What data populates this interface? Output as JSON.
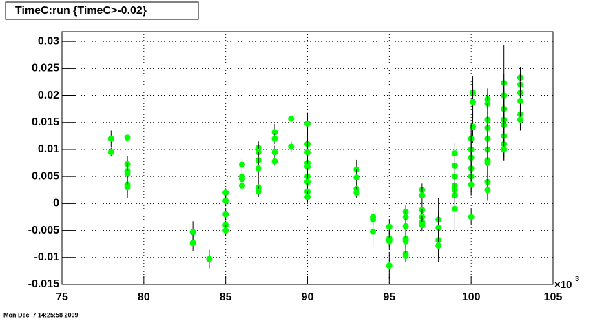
{
  "chart_data": {
    "type": "scatter",
    "title": "TimeC:run {TimeC>-0.02}",
    "x": [
      78,
      78,
      79,
      79,
      79,
      79,
      79,
      79,
      83,
      83,
      84,
      85,
      85,
      85,
      85,
      85,
      86,
      86,
      86,
      86,
      87,
      87,
      87,
      87,
      87,
      87,
      88,
      88,
      88,
      88,
      89,
      89,
      90,
      90,
      90,
      90,
      90,
      90,
      90,
      90,
      90,
      93,
      93,
      93,
      93,
      94,
      94,
      94,
      95,
      95,
      95,
      95,
      96,
      96,
      96,
      96,
      96,
      96,
      96,
      97,
      97,
      97,
      97,
      97,
      97,
      98,
      98,
      98,
      98,
      99,
      99,
      99,
      99,
      99,
      99,
      99,
      100.1,
      100.1,
      100.1,
      100,
      100,
      100,
      100,
      100,
      100,
      100,
      101,
      101,
      101,
      101,
      101,
      101,
      101,
      101,
      101,
      101,
      102,
      102,
      102,
      102,
      102,
      102,
      102,
      102,
      103,
      103,
      103,
      103,
      103,
      103
    ],
    "values": [
      0.012,
      0.0095,
      0.0122,
      0.0073,
      0.006,
      0.0055,
      0.0035,
      0.003,
      -0.0053,
      -0.0073,
      -0.0103,
      0.002,
      0.0005,
      -0.002,
      -0.004,
      -0.005,
      0.0072,
      0.005,
      0.0045,
      0.0033,
      0.0103,
      0.0095,
      0.008,
      0.0065,
      0.003,
      0.0022,
      0.0132,
      0.012,
      0.0095,
      0.0078,
      0.0157,
      0.0105,
      0.0148,
      0.011,
      0.0095,
      0.0075,
      0.0068,
      0.005,
      0.004,
      0.0022,
      0.0012,
      0.0063,
      0.0048,
      0.0027,
      0.002,
      -0.0025,
      -0.003,
      -0.0052,
      -0.0043,
      -0.0065,
      -0.007,
      -0.0115,
      -0.0015,
      -0.0025,
      -0.0042,
      -0.0065,
      -0.007,
      -0.0093,
      -0.0097,
      0.0025,
      0.0015,
      -0.0012,
      -0.0025,
      -0.0035,
      -0.004,
      -0.003,
      -0.0045,
      -0.0068,
      -0.0078,
      0.0093,
      0.007,
      0.005,
      0.0033,
      0.0025,
      0.0015,
      -0.001,
      0.0205,
      0.0188,
      0.0142,
      0.012,
      0.01,
      0.0085,
      0.0065,
      0.005,
      0.0035,
      -0.0025,
      0.0193,
      0.0185,
      0.0155,
      0.014,
      0.012,
      0.01,
      0.008,
      0.0075,
      0.004,
      0.0025,
      0.0223,
      0.02,
      0.0175,
      0.0155,
      0.0145,
      0.0125,
      0.011,
      0.01,
      0.0233,
      0.022,
      0.0205,
      0.019,
      0.0165,
      0.0155
    ],
    "errors": [
      0.0015,
      0.0008,
      0.0005,
      0.0015,
      0.0015,
      0.001,
      0.0015,
      0.002,
      0.002,
      0.0015,
      0.0017,
      0.0008,
      0.001,
      0.001,
      0.0008,
      0.001,
      0.0012,
      0.001,
      0.001,
      0.0012,
      0.0012,
      0.0015,
      0.0015,
      0.002,
      0.0015,
      0.001,
      0.0015,
      0.001,
      0.0012,
      0.0008,
      0.0005,
      0.001,
      0.002,
      0.002,
      0.002,
      0.0015,
      0.0015,
      0.0015,
      0.002,
      0.0015,
      0.001,
      0.0018,
      0.0015,
      0.0015,
      0.001,
      0.0015,
      0.0012,
      0.0025,
      0.0012,
      0.0015,
      0.0015,
      0.0025,
      0.0012,
      0.0012,
      0.0015,
      0.0015,
      0.0015,
      0.0015,
      0.001,
      0.0012,
      0.0015,
      0.0015,
      0.0015,
      0.0012,
      0.0012,
      0.0015,
      0.0055,
      0.002,
      0.003,
      0.002,
      0.002,
      0.0025,
      0.003,
      0.0025,
      0.0025,
      0.004,
      0.003,
      0.003,
      0.003,
      0.003,
      0.003,
      0.003,
      0.003,
      0.003,
      0.002,
      0.0015,
      0.002,
      0.002,
      0.003,
      0.003,
      0.003,
      0.003,
      0.003,
      0.003,
      0.002,
      0.002,
      0.007,
      0.004,
      0.004,
      0.004,
      0.004,
      0.004,
      0.003,
      0.002,
      0.002,
      0.002,
      0.002,
      0.002,
      0.002,
      0.002
    ],
    "color": "#00ff00",
    "error_color": "#000000",
    "xlim": [
      75,
      105
    ],
    "ylim": [
      -0.015,
      0.0318
    ],
    "xticks": [
      75,
      80,
      85,
      90,
      95,
      100,
      105
    ],
    "yticks": [
      -0.015,
      -0.01,
      -0.005,
      0,
      0.005,
      0.01,
      0.015,
      0.02,
      0.025,
      0.03
    ],
    "x_multiplier": {
      "base": "×10",
      "exponent": "3"
    },
    "grid": true,
    "timestamp": "Mon Dec  7 14:25:58 2009"
  }
}
